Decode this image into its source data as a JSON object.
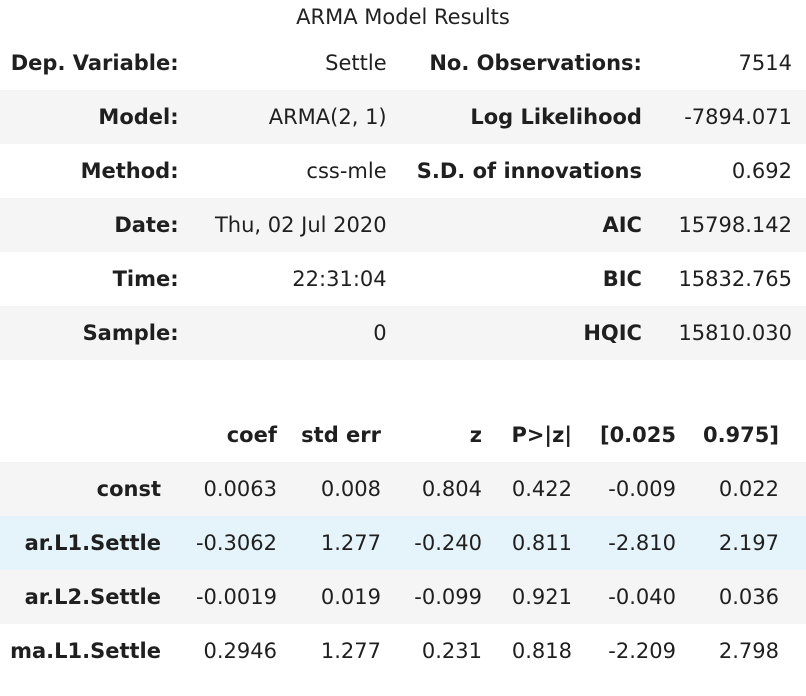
{
  "caption": "ARMA Model Results",
  "summary": {
    "rows": [
      {
        "label1": "Dep. Variable:",
        "value1": "Settle",
        "label2": "No. Observations:",
        "value2": "7514"
      },
      {
        "label1": "Model:",
        "value1": "ARMA(2, 1)",
        "label2": "Log Likelihood",
        "value2": "-7894.071"
      },
      {
        "label1": "Method:",
        "value1": "css-mle",
        "label2": "S.D. of innovations",
        "value2": "0.692"
      },
      {
        "label1": "Date:",
        "value1": "Thu, 02 Jul 2020",
        "label2": "AIC",
        "value2": "15798.142"
      },
      {
        "label1": "Time:",
        "value1": "22:31:04",
        "label2": "BIC",
        "value2": "15832.765"
      },
      {
        "label1": "Sample:",
        "value1": "0",
        "label2": "HQIC",
        "value2": "15810.030"
      }
    ]
  },
  "coefficients": {
    "headers": [
      "",
      "coef",
      "std err",
      "z",
      "P>|z|",
      "[0.025",
      "0.975]"
    ],
    "rows": [
      {
        "name": "const",
        "values": [
          "0.0063",
          "0.008",
          "0.804",
          "0.422",
          "-0.009",
          "0.022"
        ]
      },
      {
        "name": "ar.L1.Settle",
        "values": [
          "-0.3062",
          "1.277",
          "-0.240",
          "0.811",
          "-2.810",
          "2.197"
        ]
      },
      {
        "name": "ar.L2.Settle",
        "values": [
          "-0.0019",
          "0.019",
          "-0.099",
          "0.921",
          "-0.040",
          "0.036"
        ]
      },
      {
        "name": "ma.L1.Settle",
        "values": [
          "0.2946",
          "1.277",
          "0.231",
          "0.818",
          "-2.209",
          "2.798"
        ]
      }
    ]
  },
  "colors": {
    "stripe": "#f5f5f5",
    "hover_highlight": "#e5f4fa",
    "text": "#1f1f1f"
  }
}
